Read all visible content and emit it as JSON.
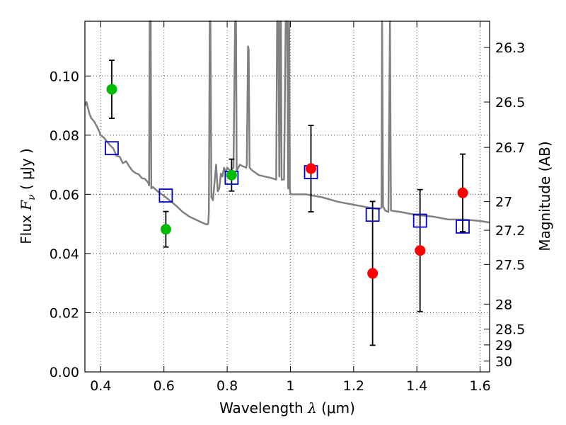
{
  "chart_data": {
    "type": "scatter",
    "xlabel": {
      "prefix": "Wavelength ",
      "symbol": "λ",
      "unit": " (μm)"
    },
    "ylabel": {
      "prefix": "Flux ",
      "symbol": "F",
      "subscript": "ν",
      "unit": " ( μJy )"
    },
    "y2label": "Magnitude (AB)",
    "xlim": [
      0.35,
      1.63
    ],
    "ylim": [
      0.0,
      0.1185
    ],
    "grid": true,
    "grid_style": "dotted",
    "x_ticks": [
      {
        "value": 0.4,
        "label": "0.4"
      },
      {
        "value": 0.6,
        "label": "0.6"
      },
      {
        "value": 0.8,
        "label": "0.8"
      },
      {
        "value": 1.0,
        "label": "1"
      },
      {
        "value": 1.2,
        "label": "1.2"
      },
      {
        "value": 1.4,
        "label": "1.4"
      },
      {
        "value": 1.6,
        "label": "1.6"
      }
    ],
    "y_ticks": [
      {
        "value": 0.0,
        "label": "0.00"
      },
      {
        "value": 0.02,
        "label": "0.02"
      },
      {
        "value": 0.04,
        "label": "0.04"
      },
      {
        "value": 0.06,
        "label": "0.06"
      },
      {
        "value": 0.08,
        "label": "0.08"
      },
      {
        "value": 0.1,
        "label": "0.10"
      }
    ],
    "mag_ticks": [
      {
        "mag": 26.3,
        "label": "26.3"
      },
      {
        "mag": 26.5,
        "label": "26.5"
      },
      {
        "mag": 26.7,
        "label": "26.7"
      },
      {
        "mag": 27.0,
        "label": "27"
      },
      {
        "mag": 27.2,
        "label": "27.2"
      },
      {
        "mag": 27.5,
        "label": "27.5"
      },
      {
        "mag": 28.0,
        "label": "28"
      },
      {
        "mag": 28.5,
        "label": "28.5"
      },
      {
        "mag": 29.0,
        "label": "29"
      },
      {
        "mag": 30.0,
        "label": "30"
      }
    ],
    "colors": {
      "model_line": "#808080",
      "green_points": "#00bb00",
      "red_points": "#ff0000",
      "model_squares": "#0000cc",
      "error_bars": "#000000",
      "grid": "#555555"
    },
    "green_points": [
      {
        "x": 0.435,
        "y": 0.0955,
        "yerr": 0.0098
      },
      {
        "x": 0.606,
        "y": 0.0482,
        "yerr": 0.006
      },
      {
        "x": 0.814,
        "y": 0.0665,
        "yerr": 0.0054
      }
    ],
    "red_points": [
      {
        "x": 1.065,
        "y": 0.0687,
        "yerr": 0.0146
      },
      {
        "x": 1.26,
        "y": 0.0333,
        "yerr": 0.0243
      },
      {
        "x": 1.41,
        "y": 0.041,
        "yerr": 0.0206
      },
      {
        "x": 1.545,
        "y": 0.0605,
        "yerr": 0.0131
      }
    ],
    "model_squares": [
      {
        "x": 0.435,
        "y": 0.0756
      },
      {
        "x": 0.606,
        "y": 0.0596
      },
      {
        "x": 0.814,
        "y": 0.0656
      },
      {
        "x": 1.065,
        "y": 0.0675
      },
      {
        "x": 1.26,
        "y": 0.0531
      },
      {
        "x": 1.41,
        "y": 0.0511
      },
      {
        "x": 1.545,
        "y": 0.0491
      }
    ],
    "model_spectrum": [
      [
        0.35,
        0.09
      ],
      [
        0.355,
        0.0912
      ],
      [
        0.36,
        0.089
      ],
      [
        0.365,
        0.087
      ],
      [
        0.37,
        0.0858
      ],
      [
        0.38,
        0.0845
      ],
      [
        0.39,
        0.0825
      ],
      [
        0.4,
        0.08
      ],
      [
        0.41,
        0.0792
      ],
      [
        0.42,
        0.0778
      ],
      [
        0.43,
        0.0765
      ],
      [
        0.44,
        0.0755
      ],
      [
        0.45,
        0.073
      ],
      [
        0.46,
        0.0727
      ],
      [
        0.47,
        0.0705
      ],
      [
        0.48,
        0.0712
      ],
      [
        0.49,
        0.0695
      ],
      [
        0.5,
        0.068
      ],
      [
        0.51,
        0.0672
      ],
      [
        0.52,
        0.0668
      ],
      [
        0.53,
        0.0655
      ],
      [
        0.54,
        0.0652
      ],
      [
        0.55,
        0.064
      ],
      [
        0.553,
        0.063
      ],
      [
        0.555,
        0.1185
      ],
      [
        0.558,
        0.1185
      ],
      [
        0.56,
        0.062
      ],
      [
        0.565,
        0.0625
      ],
      [
        0.58,
        0.061
      ],
      [
        0.6,
        0.0595
      ],
      [
        0.62,
        0.0578
      ],
      [
        0.64,
        0.056
      ],
      [
        0.66,
        0.054
      ],
      [
        0.68,
        0.0525
      ],
      [
        0.7,
        0.0515
      ],
      [
        0.72,
        0.0505
      ],
      [
        0.735,
        0.0498
      ],
      [
        0.74,
        0.05
      ],
      [
        0.742,
        0.054
      ],
      [
        0.745,
        0.1185
      ],
      [
        0.747,
        0.1185
      ],
      [
        0.75,
        0.059
      ],
      [
        0.755,
        0.058
      ],
      [
        0.76,
        0.064
      ],
      [
        0.765,
        0.07
      ],
      [
        0.77,
        0.061
      ],
      [
        0.775,
        0.062
      ],
      [
        0.78,
        0.067
      ],
      [
        0.785,
        0.066
      ],
      [
        0.79,
        0.069
      ],
      [
        0.795,
        0.0675
      ],
      [
        0.8,
        0.069
      ],
      [
        0.81,
        0.068
      ],
      [
        0.82,
        0.069
      ],
      [
        0.825,
        0.1185
      ],
      [
        0.828,
        0.1185
      ],
      [
        0.83,
        0.068
      ],
      [
        0.84,
        0.07
      ],
      [
        0.85,
        0.0695
      ],
      [
        0.86,
        0.069
      ],
      [
        0.862,
        0.07
      ],
      [
        0.866,
        0.11
      ],
      [
        0.868,
        0.109
      ],
      [
        0.871,
        0.069
      ],
      [
        0.88,
        0.068
      ],
      [
        0.9,
        0.0665
      ],
      [
        0.92,
        0.066
      ],
      [
        0.94,
        0.0655
      ],
      [
        0.955,
        0.065
      ],
      [
        0.958,
        0.1185
      ],
      [
        0.962,
        0.1185
      ],
      [
        0.965,
        0.066
      ],
      [
        0.968,
        0.1185
      ],
      [
        0.97,
        0.1185
      ],
      [
        0.972,
        0.065
      ],
      [
        0.98,
        0.065
      ],
      [
        0.985,
        0.1185
      ],
      [
        0.99,
        0.1185
      ],
      [
        0.993,
        0.062
      ],
      [
        0.996,
        0.1185
      ],
      [
        0.998,
        0.062
      ],
      [
        1.0,
        0.06
      ],
      [
        1.05,
        0.06
      ],
      [
        1.1,
        0.059
      ],
      [
        1.15,
        0.0575
      ],
      [
        1.2,
        0.0565
      ],
      [
        1.25,
        0.0555
      ],
      [
        1.28,
        0.055
      ],
      [
        1.288,
        0.0555
      ],
      [
        1.29,
        0.1185
      ],
      [
        1.293,
        0.056
      ],
      [
        1.3,
        0.0545
      ],
      [
        1.31,
        0.054
      ],
      [
        1.315,
        0.1185
      ],
      [
        1.318,
        0.0545
      ],
      [
        1.35,
        0.054
      ],
      [
        1.4,
        0.053
      ],
      [
        1.45,
        0.0525
      ],
      [
        1.5,
        0.0515
      ],
      [
        1.55,
        0.0515
      ],
      [
        1.6,
        0.051
      ],
      [
        1.63,
        0.0505
      ]
    ]
  }
}
